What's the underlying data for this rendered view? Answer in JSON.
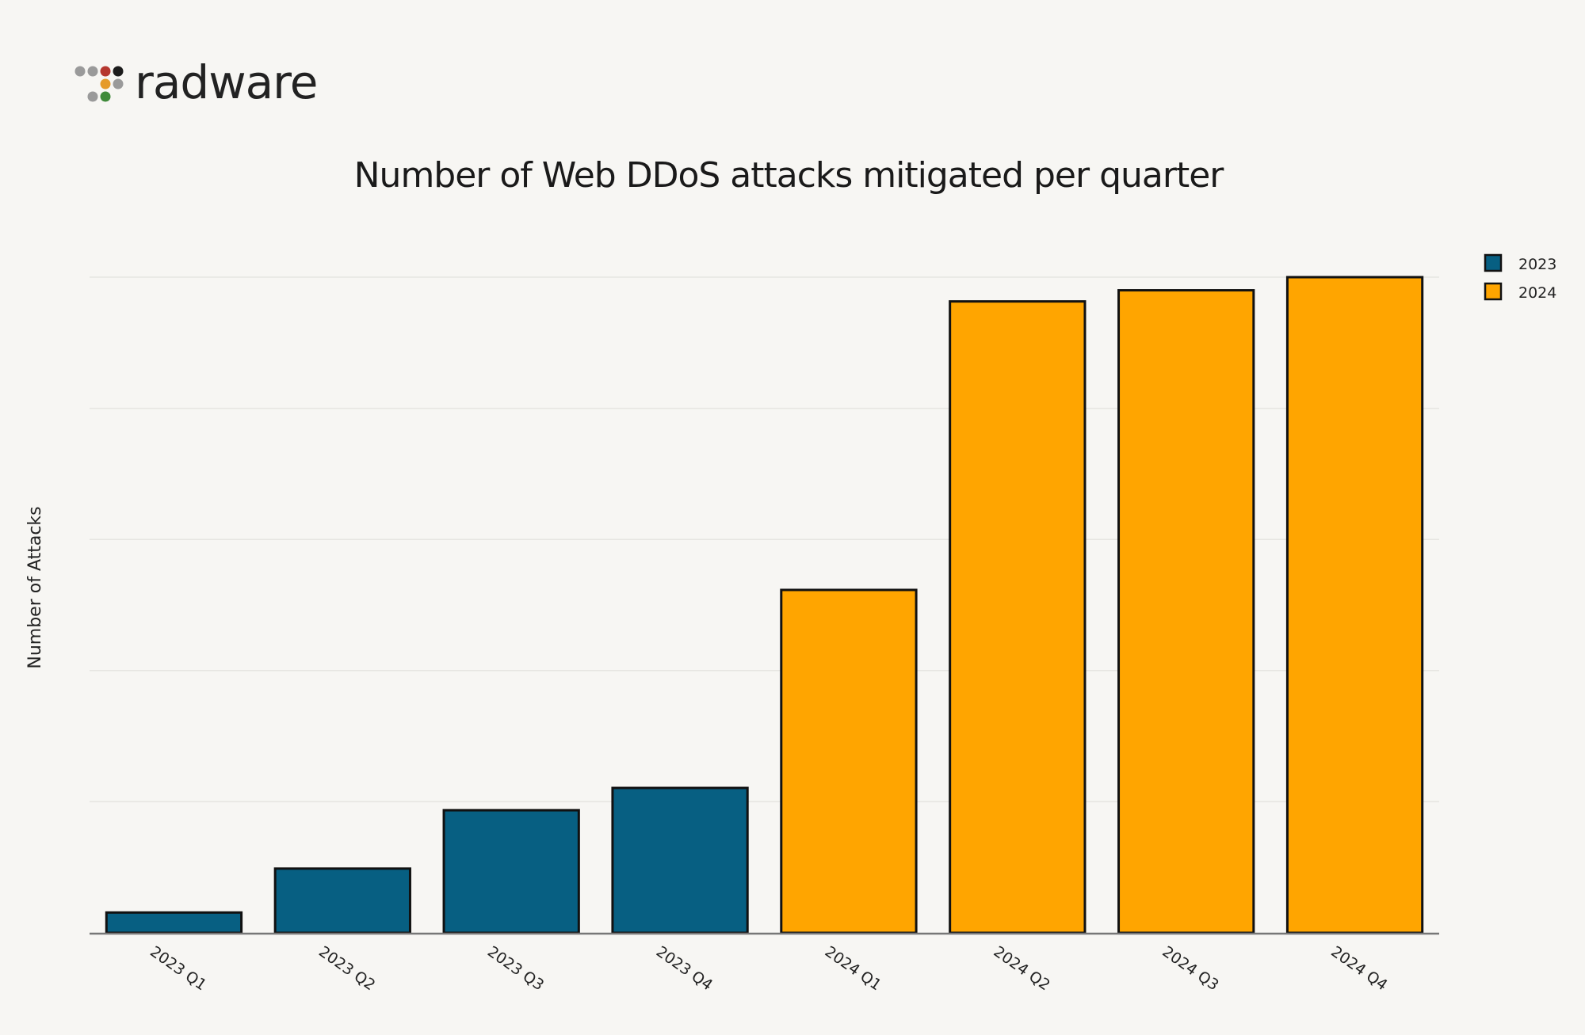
{
  "brand": {
    "name": "radware",
    "logo_dot_colors": [
      "#9a9a9a",
      "#9a9a9a",
      "#b5372f",
      "#1c1c1c",
      "#e59a2a",
      "#9a9a9a",
      "#9a9a9a",
      "#3f8a3a"
    ]
  },
  "colors": {
    "series_2023": "#075f82",
    "series_2024": "#ffa500",
    "background": "#f7f6f3",
    "grid": "#e6e5e1",
    "outline": "#111111"
  },
  "chart_data": {
    "type": "bar",
    "title": "Number of Web DDoS attacks mitigated per quarter",
    "xlabel": "",
    "ylabel": "Number of Attacks",
    "categories": [
      "2023 Q1",
      "2023 Q2",
      "2023 Q3",
      "2023 Q4",
      "2024 Q1",
      "2024 Q2",
      "2024 Q3",
      "2024 Q4"
    ],
    "series": [
      {
        "name": "2023",
        "values": [
          3.1,
          9.8,
          18.7,
          22.1,
          null,
          null,
          null,
          null
        ]
      },
      {
        "name": "2024",
        "values": [
          null,
          null,
          null,
          null,
          52.3,
          96.3,
          98.0,
          100.0
        ]
      }
    ],
    "ylim": [
      0,
      100
    ],
    "y_gridlines": [
      20,
      40,
      60,
      80,
      100
    ],
    "y_tick_labels_shown": false,
    "grid": true,
    "legend_position": "top-right"
  }
}
